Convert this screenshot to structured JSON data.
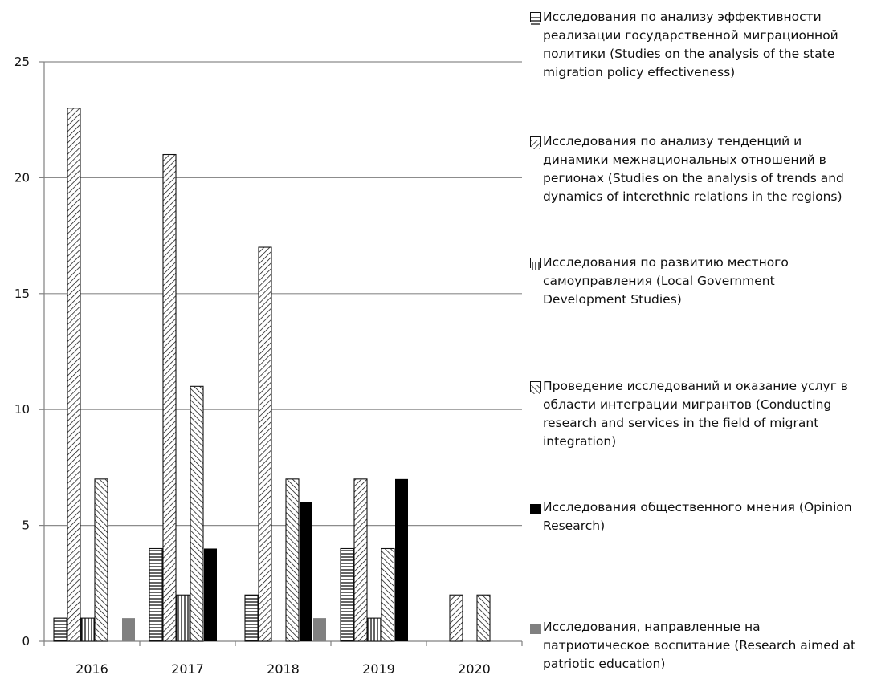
{
  "chart_data": {
    "type": "bar",
    "categories": [
      "2016",
      "2017",
      "2018",
      "2019",
      "2020"
    ],
    "ylim": [
      0,
      25
    ],
    "yticks": [
      0,
      5,
      10,
      15,
      20,
      25
    ],
    "grid": true,
    "legend_position": "right",
    "series": [
      {
        "name": "Исследования по анализу эффективности реализации государственной миграционной политики (Studies on the analysis of the state migration policy effectiveness)",
        "pattern": "horizontal-lines",
        "values": [
          1,
          4,
          2,
          4,
          0
        ]
      },
      {
        "name": "Исследования по анализу тенденций и динамики межнациональных отношений в регионах (Studies on the analysis of trends and dynamics of interethnic relations in the regions)",
        "pattern": "forward-diagonal",
        "values": [
          23,
          21,
          17,
          7,
          2
        ]
      },
      {
        "name": "Исследования по развитию местного самоуправления (Local Government Development Studies)",
        "pattern": "vertical-lines",
        "values": [
          1,
          2,
          0,
          1,
          0
        ]
      },
      {
        "name": "Проведение исследований и оказание услуг в области интеграции мигрантов (Conducting research and services in the field of migrant integration)",
        "pattern": "backward-diagonal",
        "values": [
          7,
          11,
          7,
          4,
          2
        ]
      },
      {
        "name": "Исследования общественного мнения (Opinion Research)",
        "pattern": "solid-black",
        "color": "#000000",
        "values": [
          0,
          4,
          6,
          7,
          0
        ]
      },
      {
        "name": "Исследования, направленные на патриотическое воспитание (Research aimed at patriotic education)",
        "pattern": "solid-gray",
        "color": "#808080",
        "values": [
          1,
          0,
          1,
          0,
          0
        ]
      }
    ]
  },
  "legend": {
    "items": [
      {
        "text": "Исследования по анализу эффективности\nреализации государственной миграционной\nполитики (Studies on the analysis of the state\nmigration policy effectiveness)",
        "pattern": "horizontal-lines"
      },
      {
        "text": "Исследования по анализу тенденций и\nдинамики межнациональных отношений в\nрегионах (Studies on the analysis of trends and\ndynamics of interethnic relations in the regions)",
        "pattern": "forward-diagonal"
      },
      {
        "text": "Исследования по развитию местного\nсамоуправления (Local Government\nDevelopment Studies)",
        "pattern": "vertical-lines"
      },
      {
        "text": "Проведение исследований и оказание услуг в\nобласти интеграции мигрантов (Conducting\nresearch and services in the field of migrant\nintegration)",
        "pattern": "backward-diagonal"
      },
      {
        "text": "Исследования общественного мнения (Opinion\nResearch)",
        "pattern": "solid-black"
      },
      {
        "text": "Исследования, направленные на\nпатриотическое воспитание (Research aimed at\npatriotic education)",
        "pattern": "solid-gray"
      }
    ]
  },
  "colors": {
    "axis": "#808080",
    "grid": "#8c8c8c",
    "bar_stroke": "#111111",
    "solid_black": "#000000",
    "solid_gray": "#808080"
  }
}
